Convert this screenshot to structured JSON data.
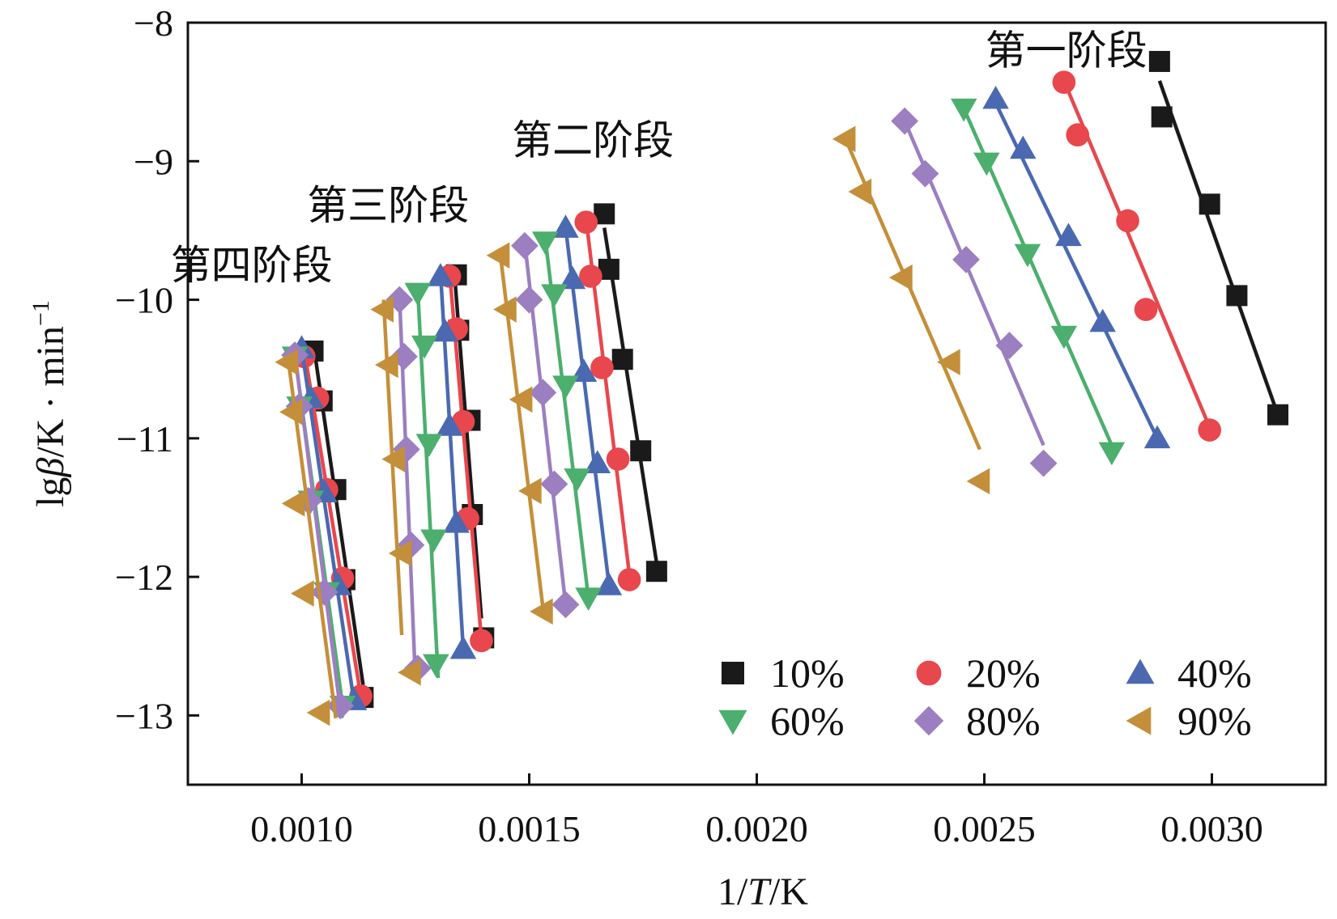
{
  "chart_data": {
    "type": "scatter",
    "xlabel_parts": [
      "1/",
      "T",
      "/K"
    ],
    "ylabel_parts": [
      "lg",
      "β",
      "/K · min",
      "−1"
    ],
    "xlim": [
      0.00075,
      0.00325
    ],
    "ylim": [
      -13.5,
      -8
    ],
    "xticks": [
      0.001,
      0.0015,
      0.002,
      0.0025,
      0.003
    ],
    "xtick_labels": [
      "0.0010",
      "0.0015",
      "0.0020",
      "0.0025",
      "0.0030"
    ],
    "yticks": [
      -8,
      -9,
      -10,
      -11,
      -12,
      -13
    ],
    "ytick_labels": [
      "−8",
      "−9",
      "−10",
      "−11",
      "−12",
      "−13"
    ],
    "stage_labels": [
      {
        "text": "第一阶段",
        "x": 0.00268,
        "y": -8.3
      },
      {
        "text": "第二阶段",
        "x": 0.00164,
        "y": -8.95
      },
      {
        "text": "第三阶段",
        "x": 0.00119,
        "y": -9.42
      },
      {
        "text": "第四阶段",
        "x": 0.00089,
        "y": -9.85
      }
    ],
    "series": [
      {
        "name": "10%",
        "marker": "square",
        "color": "#1a1a1a",
        "groups": [
          {
            "x": [
              0.002885,
              0.00289,
              0.002995,
              0.003055,
              0.003145
            ],
            "y": [
              -8.28,
              -8.68,
              -9.31,
              -9.97,
              -10.83
            ],
            "fit_x": [
              0.002885,
              0.003145
            ],
            "fit_y": [
              -8.42,
              -10.83
            ]
          },
          {
            "x": [
              0.001665,
              0.001675,
              0.001705,
              0.001745,
              0.00178
            ],
            "y": [
              -9.38,
              -9.78,
              -10.43,
              -11.09,
              -11.96
            ],
            "fit_x": [
              0.001665,
              0.00178
            ],
            "fit_y": [
              -9.48,
              -11.9
            ]
          },
          {
            "x": [
              0.00134,
              0.001345,
              0.00137,
              0.001375,
              0.0014
            ],
            "y": [
              -9.82,
              -10.22,
              -10.87,
              -11.55,
              -12.44
            ],
            "fit_x": [
              0.001335,
              0.001395
            ],
            "fit_y": [
              -9.78,
              -12.3
            ]
          },
          {
            "x": [
              0.001025,
              0.001045,
              0.001075,
              0.001095,
              0.001135
            ],
            "y": [
              -10.37,
              -10.73,
              -11.37,
              -12.02,
              -12.87
            ],
            "fit_x": [
              0.001025,
              0.001135
            ],
            "fit_y": [
              -10.3,
              -12.78
            ]
          }
        ]
      },
      {
        "name": "20%",
        "marker": "circle",
        "color": "#e8474d",
        "groups": [
          {
            "x": [
              0.002675,
              0.002705,
              0.002815,
              0.002855,
              0.002995
            ],
            "y": [
              -8.43,
              -8.81,
              -9.43,
              -10.07,
              -10.94
            ],
            "fit_x": [
              0.002675,
              0.002995
            ],
            "fit_y": [
              -8.42,
              -10.92
            ]
          },
          {
            "x": [
              0.001625,
              0.001635,
              0.00166,
              0.001695,
              0.00172
            ],
            "y": [
              -9.44,
              -9.83,
              -10.49,
              -11.15,
              -12.02
            ],
            "fit_x": [
              0.001625,
              0.00172
            ],
            "fit_y": [
              -9.42,
              -11.98
            ]
          },
          {
            "x": [
              0.001325,
              0.00134,
              0.001355,
              0.001365,
              0.001395
            ],
            "y": [
              -9.83,
              -10.21,
              -10.88,
              -11.58,
              -12.46
            ],
            "fit_x": [
              0.001325,
              0.001395
            ],
            "fit_y": [
              -9.8,
              -12.45
            ]
          },
          {
            "x": [
              0.001005,
              0.001035,
              0.001055,
              0.00109,
              0.00113
            ],
            "y": [
              -10.41,
              -10.71,
              -11.37,
              -12.01,
              -12.86
            ],
            "fit_x": [
              0.001005,
              0.00113
            ],
            "fit_y": [
              -10.35,
              -12.86
            ]
          }
        ]
      },
      {
        "name": "40%",
        "marker": "triangle-up",
        "color": "#4a69b0",
        "groups": [
          {
            "x": [
              0.002525,
              0.002585,
              0.002685,
              0.00276,
              0.00288
            ],
            "y": [
              -8.55,
              -8.91,
              -9.54,
              -10.16,
              -11.0
            ],
            "fit_x": [
              0.002525,
              0.00288
            ],
            "fit_y": [
              -8.58,
              -11.0
            ]
          },
          {
            "x": [
              0.00158,
              0.001595,
              0.00162,
              0.00165,
              0.001675
            ],
            "y": [
              -9.48,
              -9.85,
              -10.52,
              -11.18,
              -12.06
            ],
            "fit_x": [
              0.00158,
              0.001675
            ],
            "fit_y": [
              -9.48,
              -12.05
            ]
          },
          {
            "x": [
              0.001305,
              0.001315,
              0.001325,
              0.00134,
              0.001355
            ],
            "y": [
              -9.83,
              -10.23,
              -10.91,
              -11.61,
              -12.52
            ],
            "fit_x": [
              0.001305,
              0.001355
            ],
            "fit_y": [
              -9.8,
              -12.52
            ]
          },
          {
            "x": [
              0.001,
              0.00102,
              0.00105,
              0.00108,
              0.001115
            ],
            "y": [
              -10.35,
              -10.71,
              -11.39,
              -12.06,
              -12.89
            ],
            "fit_x": [
              0.001,
              0.001115
            ],
            "fit_y": [
              -10.35,
              -12.9
            ]
          }
        ]
      },
      {
        "name": "60%",
        "marker": "triangle-down",
        "color": "#4caf6d",
        "groups": [
          {
            "x": [
              0.002455,
              0.002505,
              0.002595,
              0.002675,
              0.00278
            ],
            "y": [
              -8.62,
              -9.01,
              -9.67,
              -10.26,
              -11.1
            ],
            "fit_x": [
              0.002455,
              0.00278
            ],
            "fit_y": [
              -8.62,
              -11.05
            ]
          },
          {
            "x": [
              0.001535,
              0.001555,
              0.00158,
              0.001605,
              0.00163
            ],
            "y": [
              -9.58,
              -9.96,
              -10.62,
              -11.29,
              -12.15
            ],
            "fit_x": [
              0.001535,
              0.00163
            ],
            "fit_y": [
              -9.55,
              -12.15
            ]
          },
          {
            "x": [
              0.001255,
              0.00127,
              0.00128,
              0.00129,
              0.001295
            ],
            "y": [
              -9.95,
              -10.33,
              -11.04,
              -11.73,
              -12.63
            ],
            "fit_x": [
              0.001255,
              0.0013
            ],
            "fit_y": [
              -9.92,
              -12.73
            ]
          },
          {
            "x": [
              0.000985,
              0.000995,
              0.00102,
              0.001055,
              0.00109
            ],
            "y": [
              -10.41,
              -10.77,
              -11.45,
              -12.11,
              -12.93
            ],
            "fit_x": [
              0.000985,
              0.00109
            ],
            "fit_y": [
              -10.4,
              -12.93
            ]
          }
        ]
      },
      {
        "name": "80%",
        "marker": "diamond",
        "color": "#9b7fc0",
        "groups": [
          {
            "x": [
              0.002325,
              0.00237,
              0.00246,
              0.002555,
              0.00263
            ],
            "y": [
              -8.71,
              -9.09,
              -9.71,
              -10.33,
              -11.18
            ],
            "fit_x": [
              0.002325,
              0.00263
            ],
            "fit_y": [
              -8.71,
              -11.05
            ]
          },
          {
            "x": [
              0.00149,
              0.0015,
              0.00153,
              0.001555,
              0.00158
            ],
            "y": [
              -9.61,
              -10.0,
              -10.67,
              -11.33,
              -12.2
            ],
            "fit_x": [
              0.00149,
              0.00158
            ],
            "fit_y": [
              -9.58,
              -12.2
            ]
          },
          {
            "x": [
              0.001215,
              0.001225,
              0.00123,
              0.00124,
              0.001255
            ],
            "y": [
              -10.0,
              -10.41,
              -11.08,
              -11.77,
              -12.66
            ],
            "fit_x": [
              0.001215,
              0.00125
            ],
            "fit_y": [
              -9.97,
              -12.75
            ]
          },
          {
            "x": [
              0.000985,
              0.000995,
              0.001015,
              0.00105,
              0.001085
            ],
            "y": [
              -10.4,
              -10.77,
              -11.45,
              -12.11,
              -12.93
            ],
            "fit_x": [
              0.000985,
              0.001085
            ],
            "fit_y": [
              -10.38,
              -12.96
            ]
          }
        ]
      },
      {
        "name": "90%",
        "marker": "triangle-left",
        "color": "#c48f3a",
        "groups": [
          {
            "x": [
              0.002195,
              0.00223,
              0.00232,
              0.002425,
              0.00249
            ],
            "y": [
              -8.84,
              -9.22,
              -9.84,
              -10.45,
              -11.31
            ],
            "fit_x": [
              0.002195,
              0.00249
            ],
            "fit_y": [
              -8.84,
              -11.08
            ]
          },
          {
            "x": [
              0.001435,
              0.00145,
              0.001485,
              0.001505,
              0.00153
            ],
            "y": [
              -9.68,
              -10.07,
              -10.72,
              -11.38,
              -12.25
            ],
            "fit_x": [
              0.001435,
              0.00153
            ],
            "fit_y": [
              -9.63,
              -12.22
            ]
          },
          {
            "x": [
              0.00118,
              0.00119,
              0.001205,
              0.00122,
              0.00124
            ],
            "y": [
              -10.07,
              -10.47,
              -11.15,
              -11.83,
              -12.69
            ],
            "fit_x": [
              0.00118,
              0.00122
            ],
            "fit_y": [
              -10.0,
              -12.42
            ]
          },
          {
            "x": [
              0.00097,
              0.00098,
              0.000985,
              0.001005,
              0.00104
            ],
            "y": [
              -10.45,
              -10.81,
              -11.47,
              -12.12,
              -12.98
            ],
            "fit_x": [
              0.00097,
              0.001075
            ],
            "fit_y": [
              -10.42,
              -13.02
            ]
          }
        ]
      }
    ]
  }
}
